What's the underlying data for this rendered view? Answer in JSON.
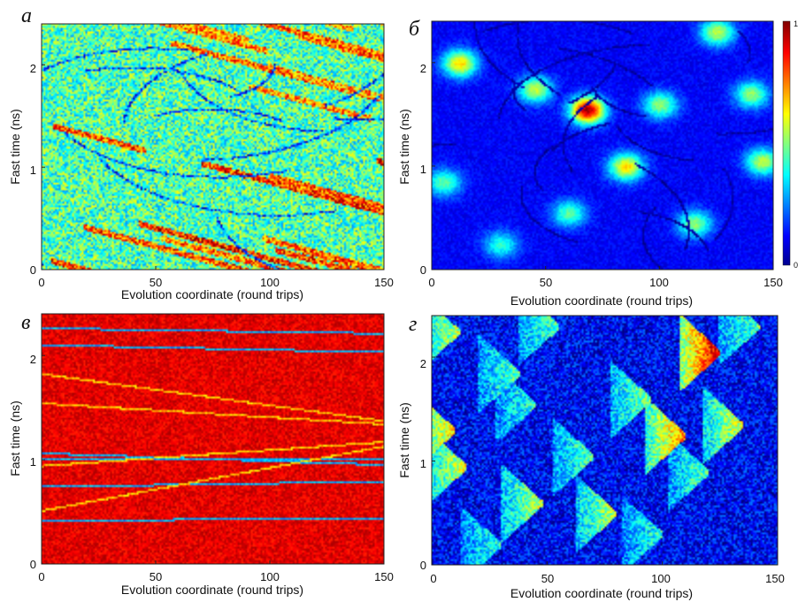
{
  "chart_data": [
    {
      "type": "heatmap",
      "panel_letter": "a",
      "xlabel": "Evolution coordinate (round trips)",
      "ylabel": "Fast time (ns)",
      "xlim": [
        0,
        150
      ],
      "ylim": [
        0,
        2.4
      ],
      "xticks": [
        "0",
        "50",
        "100",
        "150"
      ],
      "yticks": [
        "0",
        "1",
        "2"
      ],
      "colormap": "jet",
      "background_level": 0.45,
      "colorbar": false,
      "features": [
        {
          "kind": "descending-streaks",
          "count": 24,
          "slope_ns_per_trip": -0.006,
          "level": 0.78
        },
        {
          "kind": "dark-curves",
          "count": 18,
          "level": 0.2
        },
        {
          "kind": "speckle",
          "amount": 0.35
        }
      ]
    },
    {
      "type": "heatmap",
      "panel_letter": "б",
      "xlabel": "Evolution coordinate (round trips)",
      "ylabel": "Fast time (ns)",
      "xlim": [
        0,
        150
      ],
      "ylim": [
        0,
        2.4
      ],
      "xticks": [
        "0",
        "50",
        "100",
        "150"
      ],
      "yticks": [
        "0",
        "1",
        "2"
      ],
      "colormap": "jet",
      "background_level": 0.12,
      "colorbar": true,
      "colorbar_ticks": [
        "0",
        "1"
      ],
      "features": [
        {
          "kind": "hotspots",
          "points": [
            [
              12,
              2.0,
              0.55
            ],
            [
              45,
              1.75,
              0.45
            ],
            [
              68,
              1.55,
              0.85
            ],
            [
              85,
              1.0,
              0.55
            ],
            [
              100,
              1.6,
              0.4
            ],
            [
              115,
              0.45,
              0.4
            ],
            [
              125,
              2.3,
              0.45
            ],
            [
              140,
              1.7,
              0.4
            ],
            [
              145,
              1.05,
              0.45
            ],
            [
              60,
              0.55,
              0.35
            ],
            [
              30,
              0.25,
              0.3
            ],
            [
              5,
              0.85,
              0.35
            ]
          ]
        },
        {
          "kind": "dark-curves",
          "count": 22,
          "level": 0.04
        }
      ]
    },
    {
      "type": "heatmap",
      "panel_letter": "в",
      "xlabel": "Evolution coordinate (round trips)",
      "ylabel": "Fast time (ns)",
      "xlim": [
        0,
        150
      ],
      "ylim": [
        0,
        2.4
      ],
      "xticks": [
        "0",
        "50",
        "100",
        "150"
      ],
      "yticks": [
        "0",
        "1",
        "2"
      ],
      "colormap": "jet",
      "background_level": 0.9,
      "colorbar": false,
      "features": [
        {
          "kind": "straight-lines",
          "level": 0.3,
          "lines": [
            [
              2.27,
              2.22
            ],
            [
              2.11,
              2.04
            ],
            [
              1.07,
              0.96
            ],
            [
              1.02,
              1.02
            ],
            [
              0.75,
              0.8
            ],
            [
              0.43,
              0.44
            ]
          ]
        },
        {
          "kind": "straight-lines",
          "level": 0.68,
          "lines": [
            [
              1.83,
              1.38
            ],
            [
              1.55,
              1.35
            ],
            [
              0.52,
              1.14
            ],
            [
              0.95,
              1.18
            ]
          ]
        },
        {
          "kind": "speckle",
          "amount": 0.12
        }
      ]
    },
    {
      "type": "heatmap",
      "panel_letter": "г",
      "xlabel": "Evolution coordinate (round trips)",
      "ylabel": "Fast time (ns)",
      "xlim": [
        0,
        150
      ],
      "ylim": [
        0,
        2.4
      ],
      "xticks": [
        "0",
        "50",
        "100",
        "150"
      ],
      "yticks": [
        "0",
        "1",
        "2"
      ],
      "colormap": "jet",
      "background_level": 0.12,
      "colorbar": false,
      "features": [
        {
          "kind": "triangles",
          "points": [
            [
              12,
              2.25,
              0.45
            ],
            [
              55,
              2.3,
              0.35
            ],
            [
              38,
              1.85,
              0.35
            ],
            [
              10,
              1.3,
              0.55
            ],
            [
              15,
              0.95,
              0.5
            ],
            [
              45,
              1.55,
              0.3
            ],
            [
              95,
              1.6,
              0.4
            ],
            [
              110,
              1.25,
              0.65
            ],
            [
              125,
              2.05,
              0.85
            ],
            [
              135,
              1.35,
              0.5
            ],
            [
              120,
              0.9,
              0.35
            ],
            [
              48,
              0.6,
              0.45
            ],
            [
              80,
              0.5,
              0.45
            ],
            [
              30,
              0.2,
              0.3
            ],
            [
              70,
              1.05,
              0.35
            ],
            [
              142,
              2.3,
              0.35
            ],
            [
              100,
              0.3,
              0.3
            ]
          ]
        },
        {
          "kind": "speckle",
          "amount": 0.25
        }
      ]
    }
  ]
}
